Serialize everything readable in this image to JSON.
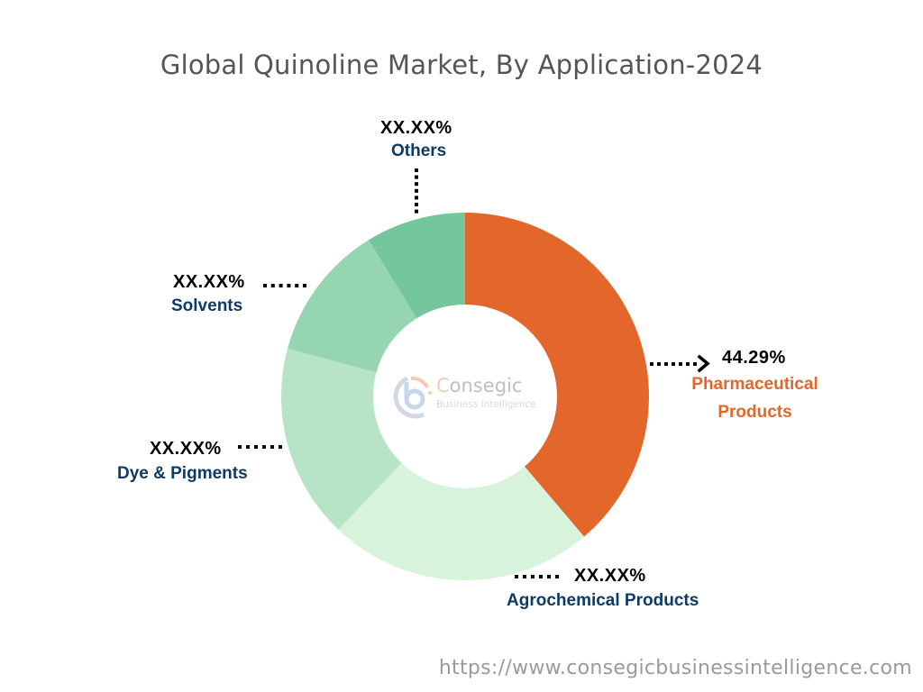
{
  "title": "Global Quinoline Market, By Application-2024",
  "footer_url": "https://www.consegicbusinessintelligence.com",
  "logo": {
    "name_initial": "C",
    "name_rest": "onsegic",
    "sub_initial": "B",
    "sub_rest": "usiness Intelligence"
  },
  "labels": {
    "others": {
      "value": "XX.XX%",
      "name": "Others"
    },
    "solvents": {
      "value": "XX.XX%",
      "name": "Solvents"
    },
    "pharma": {
      "value": "44.29%",
      "name_line1": "Pharmaceutical",
      "name_line2": "Products"
    },
    "dye": {
      "value": "XX.XX%",
      "name": "Dye & Pigments"
    },
    "agro": {
      "value": "XX.XX%",
      "name": "Agrochemical Products"
    }
  },
  "chart_data": {
    "type": "pie",
    "variant": "donut",
    "title": "Global Quinoline Market, By Application-2024",
    "categories": [
      "Pharmaceutical Products",
      "Agrochemical Products",
      "Dye & Pigments",
      "Solvents",
      "Others"
    ],
    "values": [
      44.29,
      null,
      null,
      null,
      null
    ],
    "value_labels": [
      "44.29%",
      "XX.XX%",
      "XX.XX%",
      "XX.XX%",
      "XX.XX%"
    ],
    "visual_share_estimate": [
      38.8,
      23.3,
      17.1,
      12.0,
      8.8
    ],
    "colors": [
      "#E3672A",
      "#D8F3DC",
      "#B7E4C7",
      "#95D5B2",
      "#74C69D"
    ],
    "start_angle_deg": 0,
    "direction": "clockwise",
    "legend": "none (callout labels)",
    "highlighted": "Pharmaceutical Products"
  }
}
